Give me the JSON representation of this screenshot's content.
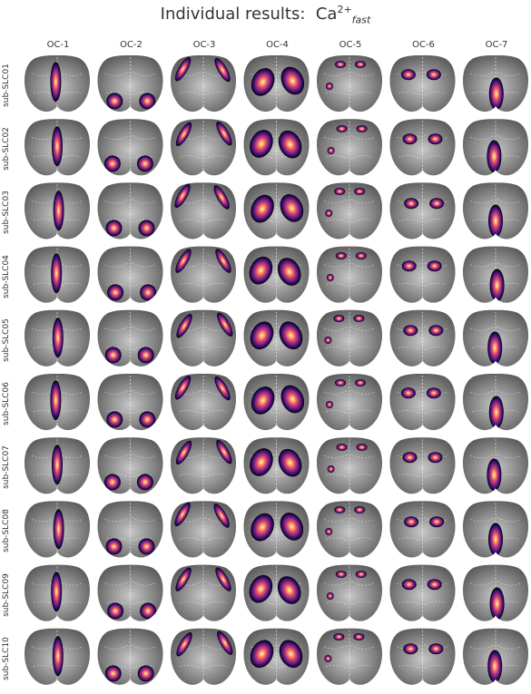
{
  "title": {
    "prefix": "Individual results:",
    "species": "Ca",
    "superscript": "2+",
    "subscript": "fast"
  },
  "columns": [
    "OC-1",
    "OC-2",
    "OC-3",
    "OC-4",
    "OC-5",
    "OC-6",
    "OC-7"
  ],
  "rows": [
    "sub-SLC01",
    "sub-SLC02",
    "sub-SLC03",
    "sub-SLC04",
    "sub-SLC05",
    "sub-SLC06",
    "sub-SLC07",
    "sub-SLC08",
    "sub-SLC09",
    "sub-SLC10"
  ],
  "colormap": [
    "#000004",
    "#3b0f70",
    "#8c2981",
    "#de4968",
    "#fe9f6d",
    "#fcfdbf"
  ],
  "background_gray": [
    "#5a5a5a",
    "#c8c8c8"
  ],
  "outline_color": "#ffffff"
}
